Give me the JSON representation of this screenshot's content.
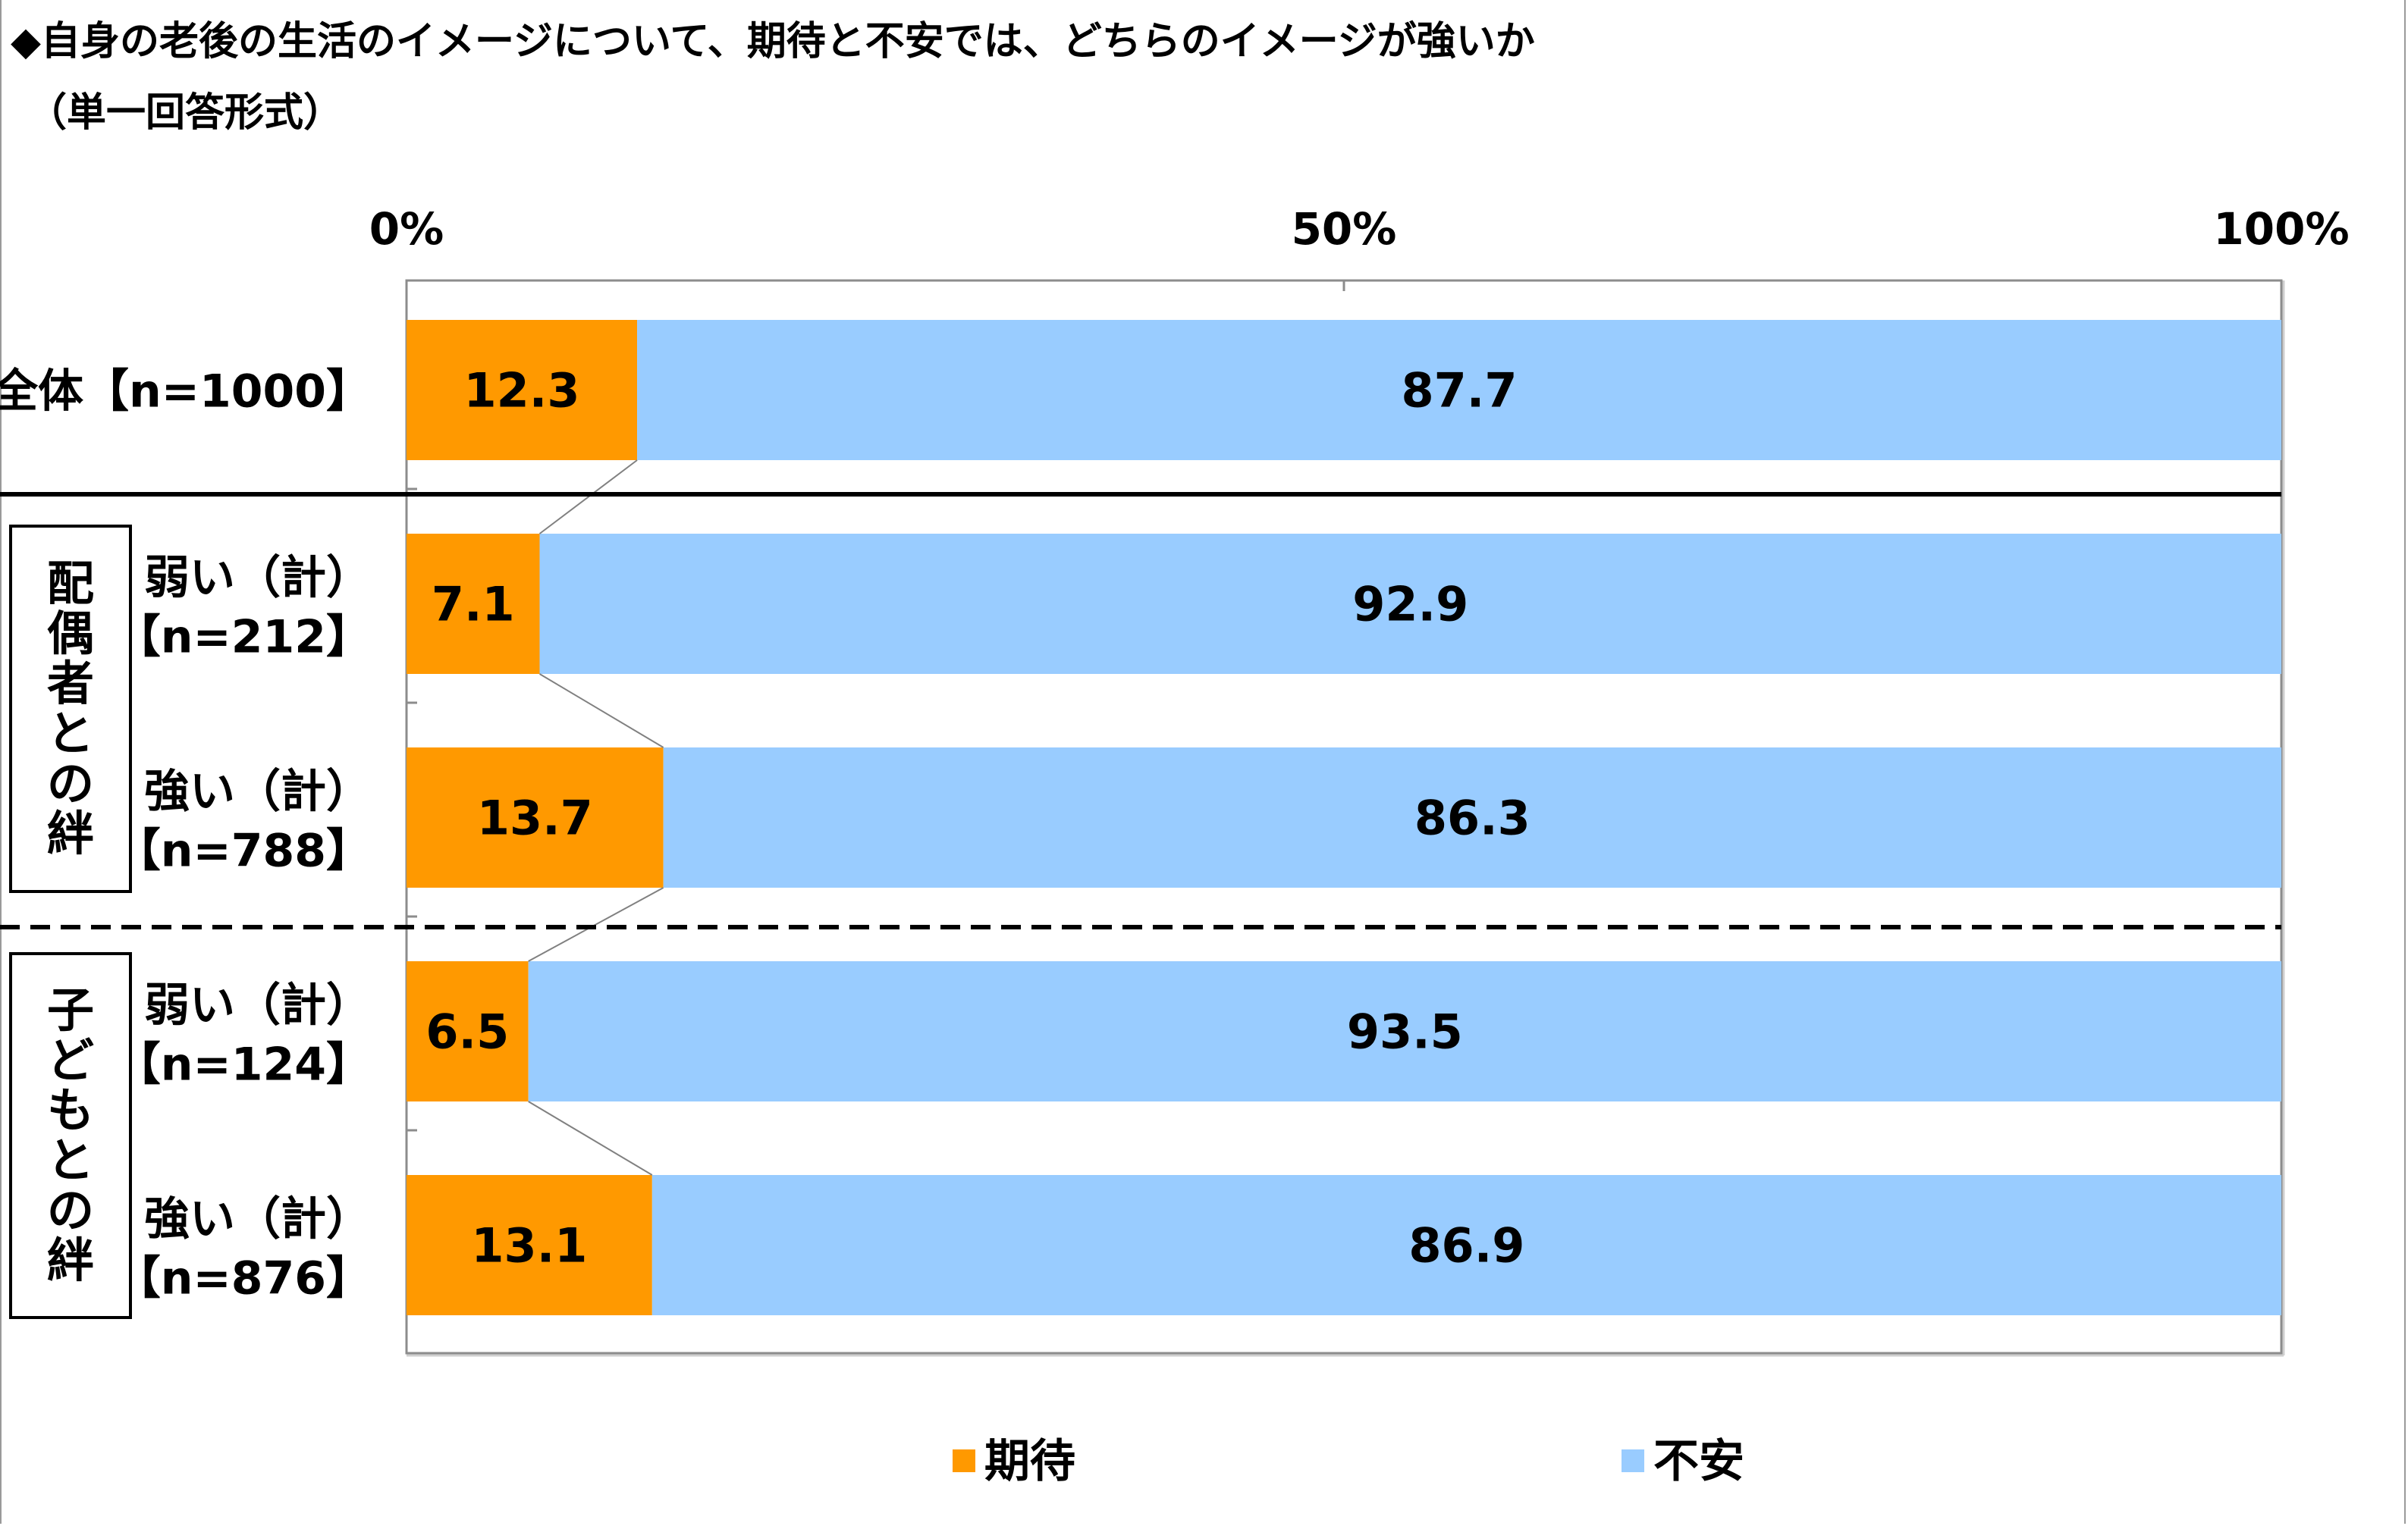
{
  "title_line1": "◆自身の老後の生活のイメージについて、期待と不安では、どちらのイメージが強いか",
  "title_line2": "（単一回答形式）",
  "chart_data": {
    "type": "bar",
    "orientation": "horizontal-stacked-100",
    "xlim": [
      0,
      100
    ],
    "ticks": [
      "0%",
      "50%",
      "100%"
    ],
    "tick_values": [
      0,
      50,
      100
    ],
    "legend_placement": "bottom",
    "categories": [
      {
        "line1": "全体【n=1000】",
        "line2": ""
      },
      {
        "line1": "弱い（計）",
        "line2": "【n=212】"
      },
      {
        "line1": "強い（計）",
        "line2": "【n=788】"
      },
      {
        "line1": "弱い（計）",
        "line2": "【n=124】"
      },
      {
        "line1": "強い（計）",
        "line2": "【n=876】"
      }
    ],
    "groups": [
      {
        "label": "配偶者との絆",
        "rows": [
          1,
          2
        ]
      },
      {
        "label": "子どもとの絆",
        "rows": [
          3,
          4
        ]
      }
    ],
    "series": [
      {
        "name": "期待",
        "color": "#ff9900",
        "values": [
          12.3,
          7.1,
          13.7,
          6.5,
          13.1
        ]
      },
      {
        "name": "不安",
        "color": "#99ccff",
        "values": [
          87.7,
          92.9,
          86.3,
          93.5,
          86.9
        ]
      }
    ]
  }
}
